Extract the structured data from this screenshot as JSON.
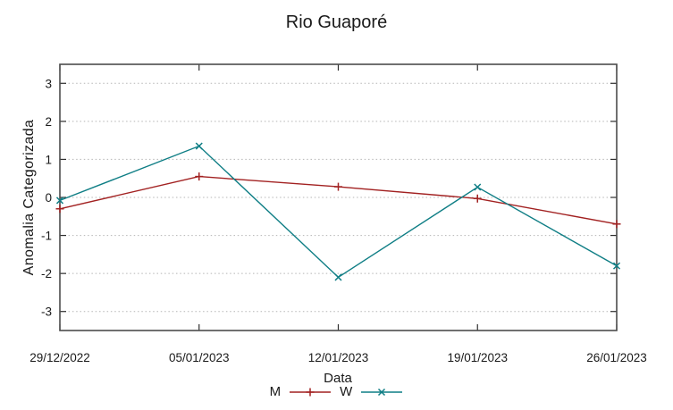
{
  "chart_data": {
    "type": "line",
    "title": "Rio Guaporé",
    "xlabel": "Data",
    "ylabel": "Anomalia Categorizada",
    "x_categories": [
      "29/12/2022",
      "05/01/2023",
      "12/01/2023",
      "19/01/2023",
      "26/01/2023"
    ],
    "y_ticks": [
      3,
      2,
      1,
      0,
      -1,
      -2,
      -3
    ],
    "ylim": [
      -3.5,
      3.5
    ],
    "grid": {
      "horizontal": true,
      "style": "dotted",
      "color": "#b5b5b5"
    },
    "legend_position": "bottom-center-below-xlabel",
    "axis_color": "#4d4d4d",
    "text_color": "#1a1a1a",
    "series": [
      {
        "name": "M",
        "color": "#a22121",
        "marker": "plus",
        "values": [
          -0.3,
          0.55,
          0.28,
          -0.03,
          -0.7
        ]
      },
      {
        "name": "W",
        "color": "#0f7e85",
        "marker": "cross",
        "values": [
          -0.08,
          1.35,
          -2.1,
          0.27,
          -1.8
        ]
      }
    ]
  }
}
